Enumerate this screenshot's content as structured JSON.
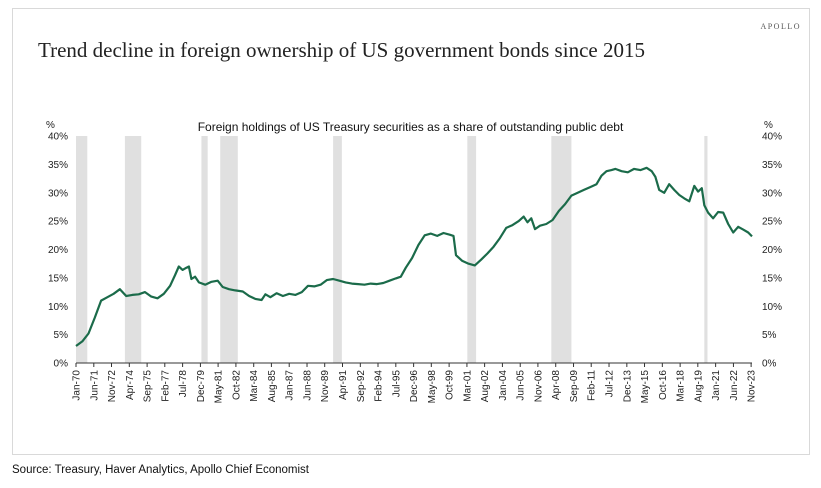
{
  "brand": "APOLLO",
  "title": "Trend decline in foreign ownership of US government bonds since 2015",
  "source": "Source: Treasury, Haver Analytics, Apollo Chief Economist",
  "chart_data": {
    "type": "line",
    "title": "Foreign holdings of US Treasury securities as a share of outstanding public debt",
    "ylabel_left": "%",
    "ylabel_right": "%",
    "ylim": [
      0,
      40
    ],
    "yticks": [
      "0%",
      "5%",
      "10%",
      "15%",
      "20%",
      "25%",
      "30%",
      "35%",
      "40%"
    ],
    "xlim": [
      1970.0,
      2023.9
    ],
    "xticks": [
      {
        "label": "Jan-70",
        "x": 1970.0
      },
      {
        "label": "Jun-71",
        "x": 1971.42
      },
      {
        "label": "Nov-72",
        "x": 1972.83
      },
      {
        "label": "Apr-74",
        "x": 1974.25
      },
      {
        "label": "Sep-75",
        "x": 1975.67
      },
      {
        "label": "Feb-77",
        "x": 1977.08
      },
      {
        "label": "Jul-78",
        "x": 1978.5
      },
      {
        "label": "Dec-79",
        "x": 1979.92
      },
      {
        "label": "May-81",
        "x": 1981.33
      },
      {
        "label": "Oct-82",
        "x": 1982.75
      },
      {
        "label": "Mar-84",
        "x": 1984.17
      },
      {
        "label": "Aug-85",
        "x": 1985.58
      },
      {
        "label": "Jan-87",
        "x": 1987.0
      },
      {
        "label": "Jun-88",
        "x": 1988.42
      },
      {
        "label": "Nov-89",
        "x": 1989.83
      },
      {
        "label": "Apr-91",
        "x": 1991.25
      },
      {
        "label": "Sep-92",
        "x": 1992.67
      },
      {
        "label": "Feb-94",
        "x": 1994.08
      },
      {
        "label": "Jul-95",
        "x": 1995.5
      },
      {
        "label": "Dec-96",
        "x": 1996.92
      },
      {
        "label": "May-98",
        "x": 1998.33
      },
      {
        "label": "Oct-99",
        "x": 1999.75
      },
      {
        "label": "Mar-01",
        "x": 2001.17
      },
      {
        "label": "Aug-02",
        "x": 2002.58
      },
      {
        "label": "Jan-04",
        "x": 2004.0
      },
      {
        "label": "Jun-05",
        "x": 2005.42
      },
      {
        "label": "Nov-06",
        "x": 2006.83
      },
      {
        "label": "Apr-08",
        "x": 2008.25
      },
      {
        "label": "Sep-09",
        "x": 2009.67
      },
      {
        "label": "Feb-11",
        "x": 2011.08
      },
      {
        "label": "Jul-12",
        "x": 2012.5
      },
      {
        "label": "Dec-13",
        "x": 2013.92
      },
      {
        "label": "May-15",
        "x": 2015.33
      },
      {
        "label": "Oct-16",
        "x": 2016.75
      },
      {
        "label": "Mar-18",
        "x": 2018.17
      },
      {
        "label": "Aug-19",
        "x": 2019.58
      },
      {
        "label": "Jan-21",
        "x": 2021.0
      },
      {
        "label": "Jun-22",
        "x": 2022.42
      },
      {
        "label": "Nov-23",
        "x": 2023.83
      }
    ],
    "recessions": [
      [
        1970.0,
        1970.9
      ],
      [
        1973.9,
        1975.2
      ],
      [
        1980.0,
        1980.5
      ],
      [
        1981.5,
        1982.9
      ],
      [
        1990.5,
        1991.2
      ],
      [
        2001.2,
        2001.9
      ],
      [
        2007.9,
        2009.5
      ],
      [
        2020.1,
        2020.35
      ]
    ],
    "series": [
      {
        "color": "#1b6b4a",
        "points": [
          [
            1970.0,
            3.0
          ],
          [
            1970.5,
            3.8
          ],
          [
            1971.0,
            5.2
          ],
          [
            1971.5,
            8.0
          ],
          [
            1972.0,
            11.0
          ],
          [
            1972.5,
            11.6
          ],
          [
            1973.0,
            12.2
          ],
          [
            1973.5,
            13.0
          ],
          [
            1974.0,
            11.8
          ],
          [
            1974.5,
            12.0
          ],
          [
            1975.0,
            12.1
          ],
          [
            1975.5,
            12.5
          ],
          [
            1976.0,
            11.7
          ],
          [
            1976.5,
            11.4
          ],
          [
            1977.0,
            12.2
          ],
          [
            1977.5,
            13.6
          ],
          [
            1977.9,
            15.5
          ],
          [
            1978.2,
            17.0
          ],
          [
            1978.5,
            16.4
          ],
          [
            1978.8,
            16.8
          ],
          [
            1979.0,
            17.0
          ],
          [
            1979.2,
            14.8
          ],
          [
            1979.5,
            15.2
          ],
          [
            1979.8,
            14.2
          ],
          [
            1980.3,
            13.8
          ],
          [
            1980.8,
            14.3
          ],
          [
            1981.3,
            14.5
          ],
          [
            1981.7,
            13.4
          ],
          [
            1982.2,
            13.0
          ],
          [
            1982.7,
            12.8
          ],
          [
            1983.3,
            12.6
          ],
          [
            1983.8,
            11.8
          ],
          [
            1984.3,
            11.3
          ],
          [
            1984.8,
            11.1
          ],
          [
            1985.1,
            12.1
          ],
          [
            1985.5,
            11.6
          ],
          [
            1986.0,
            12.3
          ],
          [
            1986.5,
            11.8
          ],
          [
            1987.0,
            12.2
          ],
          [
            1987.5,
            12.0
          ],
          [
            1988.0,
            12.5
          ],
          [
            1988.5,
            13.6
          ],
          [
            1989.0,
            13.5
          ],
          [
            1989.5,
            13.8
          ],
          [
            1990.0,
            14.6
          ],
          [
            1990.5,
            14.8
          ],
          [
            1991.0,
            14.5
          ],
          [
            1991.5,
            14.2
          ],
          [
            1992.0,
            14.0
          ],
          [
            1992.5,
            13.9
          ],
          [
            1993.0,
            13.8
          ],
          [
            1993.5,
            14.0
          ],
          [
            1994.0,
            13.9
          ],
          [
            1994.5,
            14.1
          ],
          [
            1995.0,
            14.5
          ],
          [
            1995.5,
            14.9
          ],
          [
            1995.9,
            15.2
          ],
          [
            1996.3,
            16.8
          ],
          [
            1996.8,
            18.5
          ],
          [
            1997.3,
            20.8
          ],
          [
            1997.8,
            22.5
          ],
          [
            1998.3,
            22.8
          ],
          [
            1998.8,
            22.4
          ],
          [
            1999.3,
            22.9
          ],
          [
            1999.8,
            22.6
          ],
          [
            2000.1,
            22.4
          ],
          [
            2000.3,
            19.0
          ],
          [
            2000.8,
            18.0
          ],
          [
            2001.3,
            17.5
          ],
          [
            2001.8,
            17.2
          ],
          [
            2002.3,
            18.2
          ],
          [
            2002.8,
            19.3
          ],
          [
            2003.3,
            20.5
          ],
          [
            2003.8,
            22.0
          ],
          [
            2004.3,
            23.8
          ],
          [
            2004.8,
            24.3
          ],
          [
            2005.3,
            25.0
          ],
          [
            2005.7,
            25.8
          ],
          [
            2006.0,
            24.8
          ],
          [
            2006.3,
            25.5
          ],
          [
            2006.6,
            23.6
          ],
          [
            2007.0,
            24.2
          ],
          [
            2007.5,
            24.5
          ],
          [
            2008.0,
            25.2
          ],
          [
            2008.5,
            26.8
          ],
          [
            2009.0,
            28.0
          ],
          [
            2009.5,
            29.5
          ],
          [
            2010.0,
            30.0
          ],
          [
            2010.5,
            30.5
          ],
          [
            2011.0,
            31.0
          ],
          [
            2011.5,
            31.5
          ],
          [
            2011.9,
            33.0
          ],
          [
            2012.3,
            33.8
          ],
          [
            2012.7,
            34.0
          ],
          [
            2013.0,
            34.2
          ],
          [
            2013.5,
            33.8
          ],
          [
            2014.0,
            33.6
          ],
          [
            2014.5,
            34.2
          ],
          [
            2015.0,
            34.0
          ],
          [
            2015.5,
            34.4
          ],
          [
            2015.9,
            33.8
          ],
          [
            2016.2,
            32.8
          ],
          [
            2016.5,
            30.5
          ],
          [
            2016.9,
            30.0
          ],
          [
            2017.3,
            31.5
          ],
          [
            2017.7,
            30.5
          ],
          [
            2018.1,
            29.6
          ],
          [
            2018.5,
            29.0
          ],
          [
            2018.9,
            28.5
          ],
          [
            2019.3,
            31.2
          ],
          [
            2019.6,
            30.2
          ],
          [
            2019.9,
            30.8
          ],
          [
            2020.1,
            27.8
          ],
          [
            2020.4,
            26.5
          ],
          [
            2020.8,
            25.5
          ],
          [
            2021.2,
            26.6
          ],
          [
            2021.6,
            26.5
          ],
          [
            2022.0,
            24.5
          ],
          [
            2022.4,
            23.0
          ],
          [
            2022.8,
            24.0
          ],
          [
            2023.2,
            23.5
          ],
          [
            2023.6,
            23.0
          ],
          [
            2023.9,
            22.3
          ]
        ]
      }
    ]
  },
  "colors": {
    "line": "#1b6b4a",
    "recession_band": "#e0e0e0",
    "text": "#222222"
  }
}
